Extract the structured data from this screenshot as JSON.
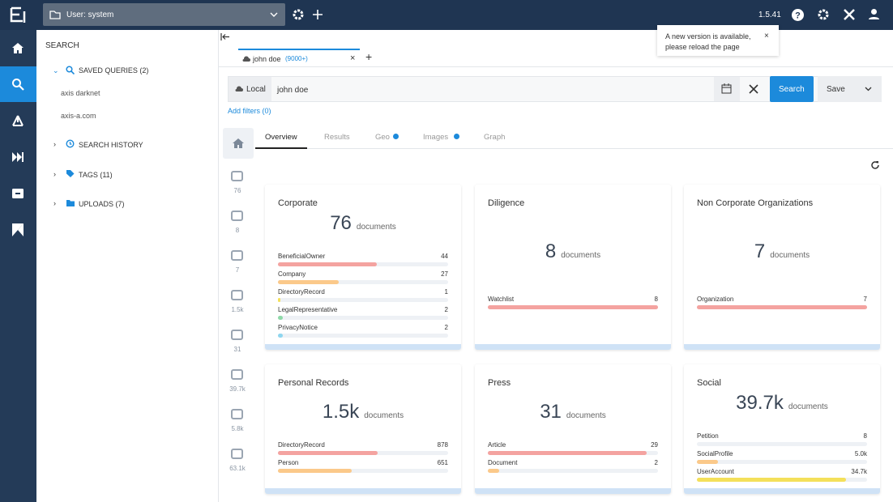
{
  "topbar": {
    "user": "User: system",
    "version": "1.5.41"
  },
  "notification": "A new version is available, please reload the page",
  "search_panel": {
    "title": "SEARCH",
    "saved_queries": "SAVED QUERIES (2)",
    "queries": [
      "axis darknet",
      "axis-a.com"
    ],
    "search_history": "SEARCH HISTORY",
    "tags": "TAGS (11)",
    "uploads": "UPLOADS (7)"
  },
  "tab": {
    "label": "john doe",
    "count": "(9000+)"
  },
  "search_bar": {
    "scope": "Local",
    "query": "john doe",
    "search_button": "Search",
    "save_button": "Save",
    "add_filters": "Add filters (0)"
  },
  "view_tabs": [
    "Overview",
    "Results",
    "Geo",
    "Images",
    "Graph"
  ],
  "side_counts": [
    "76",
    "8",
    "7",
    "1.5k",
    "31",
    "39.7k",
    "5.8k",
    "63.1k"
  ],
  "cards": [
    {
      "title": "Corporate",
      "total": {
        "value": 76,
        "label": "76"
      },
      "unit": "documents",
      "items": [
        {
          "name": "BeneficialOwner",
          "value": 44,
          "label": "44",
          "color": "#f4a3a0"
        },
        {
          "name": "Company",
          "value": 27,
          "label": "27",
          "color": "#fbc98a"
        },
        {
          "name": "DirectoryRecord",
          "value": 1,
          "label": "1",
          "color": "#f4e05a"
        },
        {
          "name": "LegalRepresentative",
          "value": 2,
          "label": "2",
          "color": "#8ed9a8"
        },
        {
          "name": "PrivacyNotice",
          "value": 2,
          "label": "2",
          "color": "#8fd6ef"
        }
      ]
    },
    {
      "title": "Diligence",
      "total": {
        "value": 8,
        "label": "8"
      },
      "unit": "documents",
      "items": [
        {
          "name": "Watchlist",
          "value": 8,
          "label": "8",
          "color": "#f4a3a0"
        }
      ]
    },
    {
      "title": "Non Corporate Organizations",
      "total": {
        "value": 7,
        "label": "7"
      },
      "unit": "documents",
      "items": [
        {
          "name": "Organization",
          "value": 7,
          "label": "7",
          "color": "#f4a3a0"
        }
      ]
    },
    {
      "title": "Personal Records",
      "total": {
        "value": 1500,
        "label": "1.5k"
      },
      "unit": "documents",
      "items": [
        {
          "name": "DirectoryRecord",
          "value": 878,
          "label": "878",
          "color": "#f4a3a0"
        },
        {
          "name": "Person",
          "value": 651,
          "label": "651",
          "color": "#fbc98a"
        }
      ]
    },
    {
      "title": "Press",
      "total": {
        "value": 31,
        "label": "31"
      },
      "unit": "documents",
      "items": [
        {
          "name": "Article",
          "value": 29,
          "label": "29",
          "color": "#f4a3a0"
        },
        {
          "name": "Document",
          "value": 2,
          "label": "2",
          "color": "#fbc98a"
        }
      ]
    },
    {
      "title": "Social",
      "total": {
        "value": 39700,
        "label": "39.7k"
      },
      "unit": "documents",
      "items": [
        {
          "name": "Petition",
          "value": 8,
          "label": "8",
          "color": "#f4a3a0"
        },
        {
          "name": "SocialProfile",
          "value": 5000,
          "label": "5.0k",
          "color": "#fbc98a"
        },
        {
          "name": "UserAccount",
          "value": 34700,
          "label": "34.7k",
          "color": "#f4e05a"
        }
      ]
    }
  ]
}
